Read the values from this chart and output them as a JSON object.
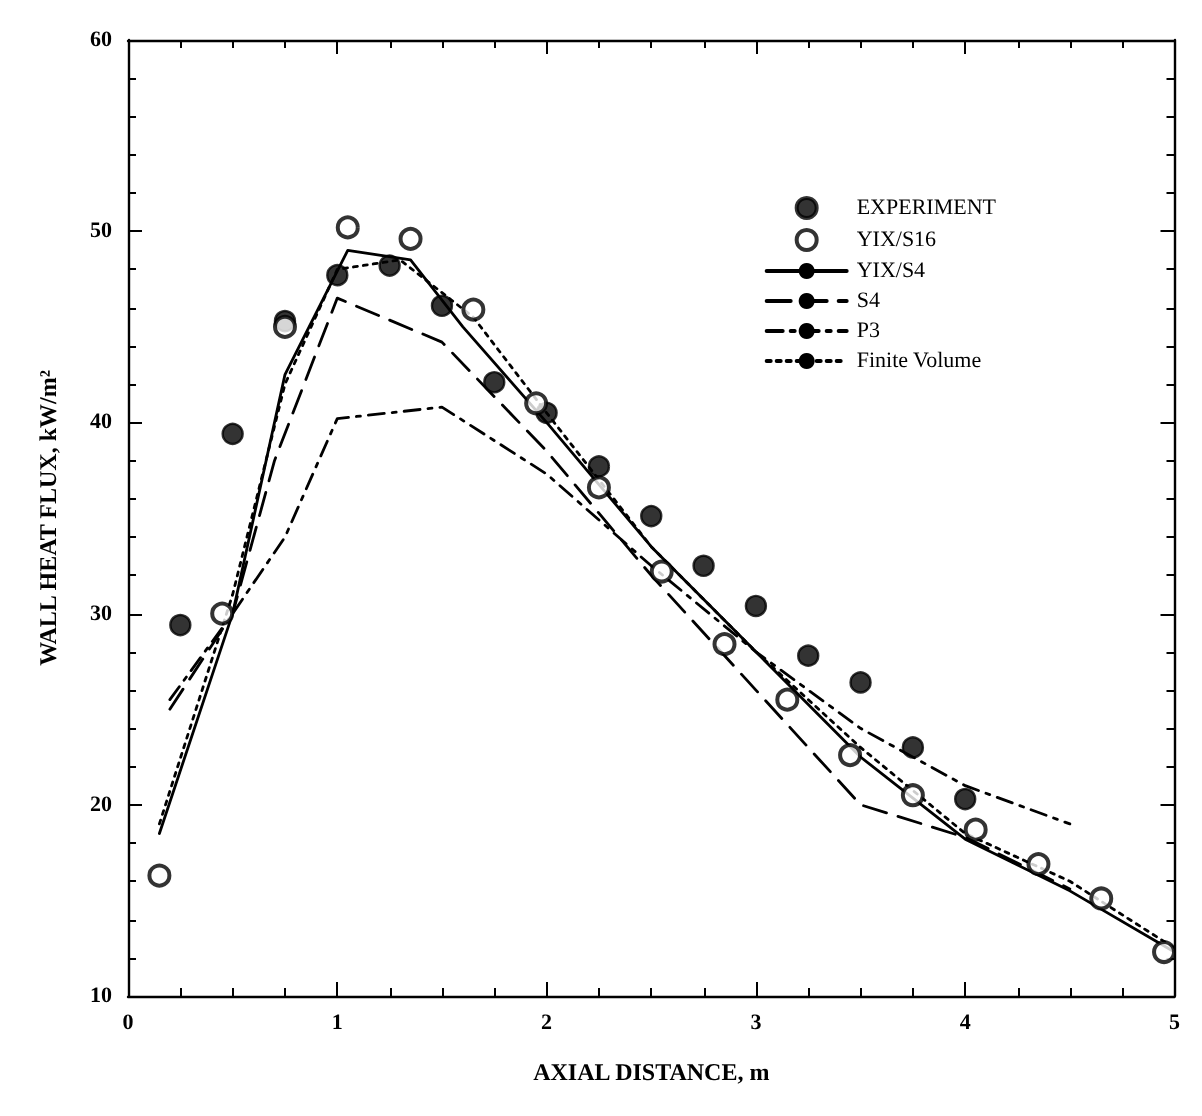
{
  "chart_data": {
    "type": "line",
    "xlabel": "AXIAL DISTANCE, m",
    "ylabel": "WALL HEAT FLUX, kW/m²",
    "xlim": [
      0,
      5
    ],
    "xticks": [
      0,
      1,
      2,
      3,
      4,
      5
    ],
    "ylim": [
      10,
      60
    ],
    "yticks": [
      10,
      20,
      30,
      40,
      50,
      60
    ],
    "grid": false,
    "legend": "top right",
    "series": [
      {
        "name": "EXPERIMENT",
        "type": "scatter",
        "marker": "circle",
        "color": "#000000",
        "x": [
          0.25,
          0.5,
          0.75,
          1.0,
          1.25,
          1.5,
          1.75,
          2.0,
          2.25,
          2.5,
          2.75,
          3.0,
          3.25,
          3.5,
          3.75,
          4.0
        ],
        "values": [
          29.4,
          39.4,
          45.3,
          47.7,
          48.2,
          46.1,
          42.1,
          40.5,
          37.7,
          35.1,
          32.5,
          30.4,
          27.8,
          26.4,
          23.0,
          20.3
        ]
      },
      {
        "name": "YIX/S16",
        "type": "scatter",
        "marker": "emptyCircle",
        "color": "#000000",
        "x": [
          0.15,
          0.45,
          0.75,
          1.05,
          1.35,
          1.65,
          1.95,
          2.25,
          2.55,
          2.85,
          3.15,
          3.45,
          3.75,
          4.05,
          4.35,
          4.65,
          4.95
        ],
        "values": [
          16.3,
          30.0,
          45.0,
          50.2,
          49.6,
          45.9,
          41.0,
          36.6,
          32.2,
          28.4,
          25.5,
          22.6,
          20.5,
          18.7,
          16.9,
          15.1,
          12.3
        ]
      },
      {
        "name": "YIX/S4",
        "line_style": "solid",
        "color": "#000000",
        "x": [
          0.15,
          0.5,
          0.75,
          1.05,
          1.35,
          1.6,
          2.0,
          2.5,
          3.0,
          3.5,
          4.0,
          4.5,
          5.0
        ],
        "values": [
          18.5,
          30,
          42.5,
          49,
          48.5,
          45,
          40,
          33.5,
          28,
          22.5,
          18.2,
          15.5,
          12.3
        ]
      },
      {
        "name": "S4",
        "line_style": "dashed",
        "color": "#000000",
        "x": [
          0.2,
          0.5,
          0.7,
          1.0,
          1.5,
          2.0,
          2.5,
          3.0,
          3.5,
          4.0,
          4.5
        ],
        "values": [
          25,
          30,
          38,
          46.5,
          44.2,
          38.5,
          32,
          26,
          20,
          18.3,
          15.6
        ]
      },
      {
        "name": "P3",
        "line_style": "dashdot",
        "color": "#000000",
        "x": [
          0.2,
          0.5,
          0.75,
          1.0,
          1.5,
          2.0,
          2.5,
          3.0,
          3.5,
          4.0,
          4.5
        ],
        "values": [
          25.5,
          30,
          34,
          40.2,
          40.8,
          37.3,
          32.5,
          28,
          24,
          21,
          19
        ]
      },
      {
        "name": "Finite Volume",
        "line_style": "dotted",
        "color": "#000000",
        "x": [
          0.15,
          0.5,
          0.75,
          1.0,
          1.3,
          1.65,
          2.0,
          2.5,
          3.0,
          3.5,
          4.0,
          4.5,
          5.0
        ],
        "values": [
          19,
          31,
          42,
          48,
          48.5,
          45.5,
          40.5,
          33.5,
          28,
          23,
          18.5,
          16,
          12.5
        ]
      }
    ]
  }
}
